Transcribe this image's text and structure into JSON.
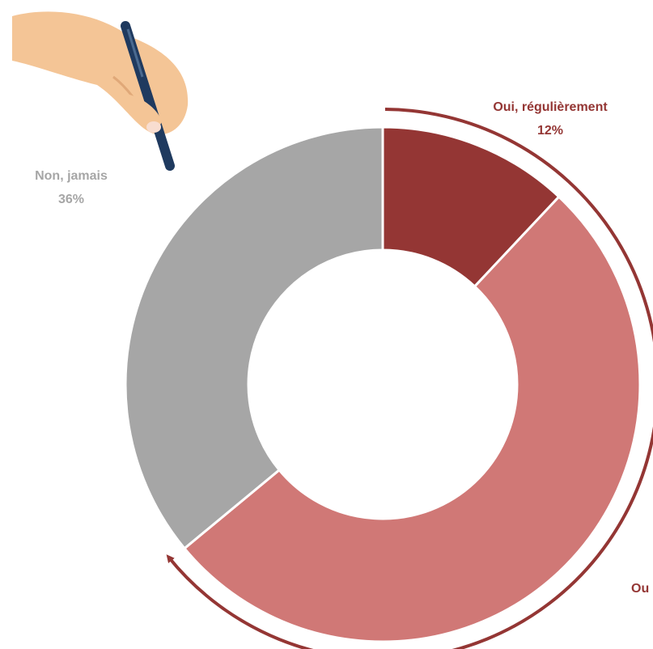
{
  "chart_data": {
    "type": "donut",
    "categories": [
      "Oui, régulièrement",
      "Ou",
      "Non, jamais"
    ],
    "values": [
      12,
      52,
      36
    ],
    "value_labels": [
      "12%",
      null,
      "36%"
    ],
    "colors": [
      "#943634",
      "#d07876",
      "#a6a6a6"
    ],
    "label_colors": [
      "#943634",
      "#943634",
      "#a6a6a6"
    ]
  }
}
